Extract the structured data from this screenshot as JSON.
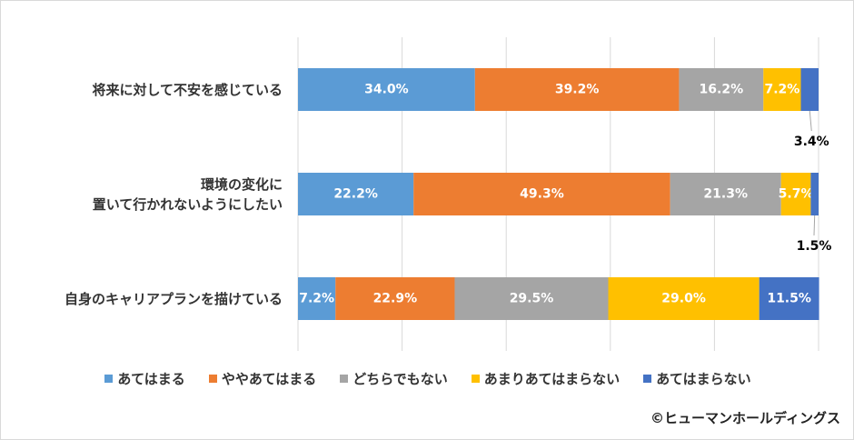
{
  "chart_data": {
    "type": "stacked-barh",
    "categories": [
      "将来に対して不安を感じている",
      "環境の変化に\n置いて行かれないようにしたい",
      "自身のキャリアプランを描けている"
    ],
    "series": [
      {
        "name": "あてはまる",
        "color": "#5b9bd5",
        "values": [
          34.0,
          22.2,
          7.2
        ],
        "value_labels": [
          "34.0%",
          "22.2%",
          "7.2%"
        ]
      },
      {
        "name": "ややあてはまる",
        "color": "#ed7d31",
        "values": [
          39.2,
          49.3,
          22.9
        ],
        "value_labels": [
          "39.2%",
          "49.3%",
          "22.9%"
        ]
      },
      {
        "name": "どちらでもない",
        "color": "#a5a5a5",
        "values": [
          16.2,
          21.3,
          29.5
        ],
        "value_labels": [
          "16.2%",
          "21.3%",
          "29.5%"
        ]
      },
      {
        "name": "あまりあてはまらない",
        "color": "#ffc000",
        "values": [
          7.2,
          5.7,
          29.0
        ],
        "value_labels": [
          "7.2%",
          "5.7%",
          "29.0%"
        ]
      },
      {
        "name": "あてはまらない",
        "color": "#4472c4",
        "values": [
          3.4,
          1.5,
          11.5
        ],
        "value_labels": [
          "3.4%",
          "1.5%",
          "11.5%"
        ]
      }
    ],
    "xlim": [
      0,
      100
    ],
    "xticks": [
      0,
      20,
      40,
      60,
      80,
      100
    ],
    "grid": true,
    "source": "©ヒューマンホールディングス"
  }
}
